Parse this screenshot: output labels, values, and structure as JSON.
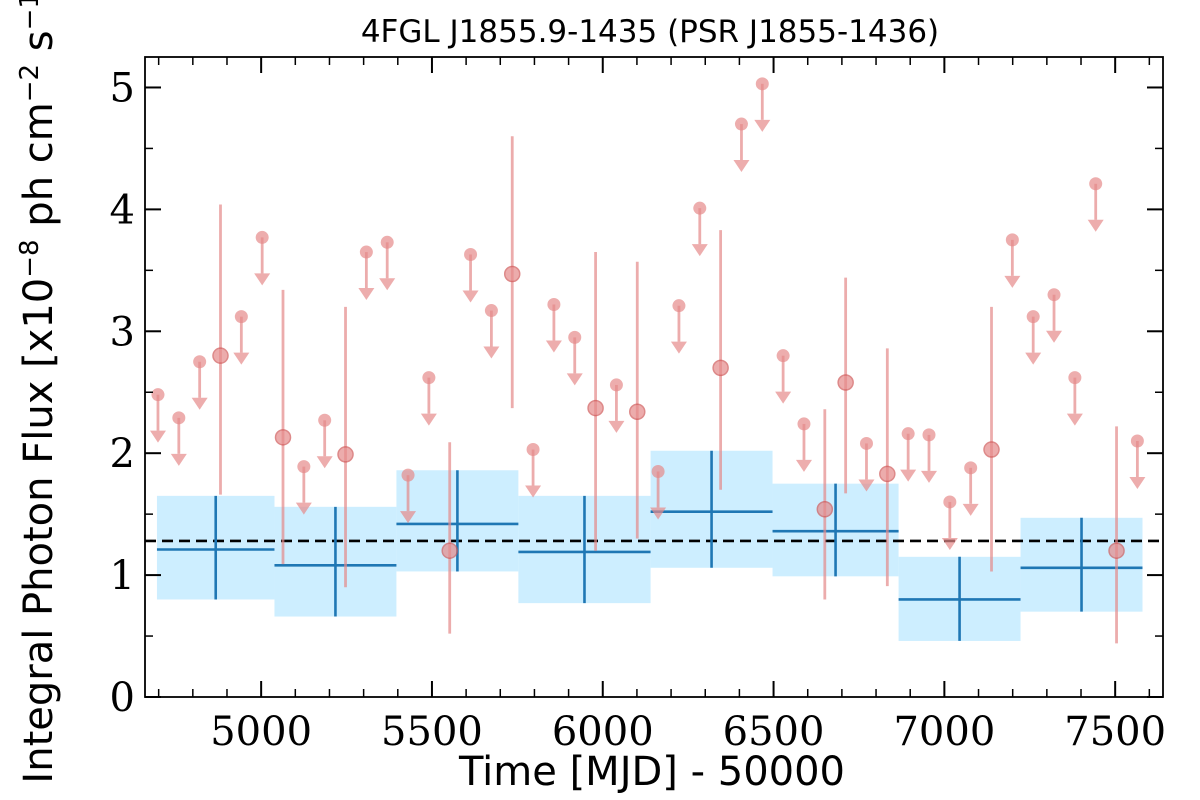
{
  "chart_data": {
    "type": "scatter",
    "title": "4FGL J1855.9-1435 (PSR J1855-1436)",
    "xlabel": "Time [MJD] - 50000",
    "ylabel": "Integral Photon Flux [x10^-8 ph cm^-2 s^-1]",
    "xlim": [
      4660,
      7640
    ],
    "ylim": [
      0,
      5.25
    ],
    "x_ticks": [
      5000,
      5500,
      6000,
      6500,
      7000,
      7500
    ],
    "y_ticks": [
      0,
      1,
      2,
      3,
      4,
      5
    ],
    "grid": false,
    "reference_line": {
      "y": 1.28,
      "style": "dashed",
      "color": "#000000"
    },
    "colors": {
      "short_bins": "#e58a8a",
      "long_bins": "#1f77b4",
      "long_bins_band": "#cdeeff"
    },
    "series": [
      {
        "role": "upper_limits",
        "points": [
          {
            "x": 4698,
            "y": 2.48
          },
          {
            "x": 4759,
            "y": 2.29
          },
          {
            "x": 4820,
            "y": 2.75
          },
          {
            "x": 4942,
            "y": 3.12
          },
          {
            "x": 5003,
            "y": 3.77
          },
          {
            "x": 5125,
            "y": 1.89
          },
          {
            "x": 5186,
            "y": 2.27
          },
          {
            "x": 5308,
            "y": 3.65
          },
          {
            "x": 5369,
            "y": 3.73
          },
          {
            "x": 5430,
            "y": 1.82
          },
          {
            "x": 5491,
            "y": 2.62
          },
          {
            "x": 5613,
            "y": 3.63
          },
          {
            "x": 5674,
            "y": 3.17
          },
          {
            "x": 5796,
            "y": 2.03
          },
          {
            "x": 5857,
            "y": 3.22
          },
          {
            "x": 5918,
            "y": 2.95
          },
          {
            "x": 6040,
            "y": 2.56
          },
          {
            "x": 6162,
            "y": 1.85
          },
          {
            "x": 6223,
            "y": 3.21
          },
          {
            "x": 6284,
            "y": 4.01
          },
          {
            "x": 6406,
            "y": 4.7
          },
          {
            "x": 6467,
            "y": 5.03
          },
          {
            "x": 6528,
            "y": 2.8
          },
          {
            "x": 6589,
            "y": 2.24
          },
          {
            "x": 6772,
            "y": 2.08
          },
          {
            "x": 6894,
            "y": 2.16
          },
          {
            "x": 6955,
            "y": 2.15
          },
          {
            "x": 7016,
            "y": 1.6
          },
          {
            "x": 7077,
            "y": 1.88
          },
          {
            "x": 7199,
            "y": 3.75
          },
          {
            "x": 7260,
            "y": 3.12
          },
          {
            "x": 7321,
            "y": 3.3
          },
          {
            "x": 7382,
            "y": 2.62
          },
          {
            "x": 7443,
            "y": 4.21
          },
          {
            "x": 7565,
            "y": 2.1
          }
        ]
      },
      {
        "role": "detections",
        "points": [
          {
            "x": 4881,
            "y": 2.8,
            "ylo": 1.66,
            "yhi": 4.04
          },
          {
            "x": 5064,
            "y": 2.13,
            "ylo": 1.09,
            "yhi": 3.34
          },
          {
            "x": 5247,
            "y": 1.99,
            "ylo": 0.9,
            "yhi": 3.2
          },
          {
            "x": 5552,
            "y": 1.2,
            "ylo": 0.52,
            "yhi": 2.09
          },
          {
            "x": 5735,
            "y": 3.47,
            "ylo": 2.37,
            "yhi": 4.6
          },
          {
            "x": 5979,
            "y": 2.37,
            "ylo": 1.2,
            "yhi": 3.65
          },
          {
            "x": 6101,
            "y": 2.34,
            "ylo": 1.3,
            "yhi": 3.57
          },
          {
            "x": 6345,
            "y": 2.7,
            "ylo": 1.7,
            "yhi": 3.83
          },
          {
            "x": 6650,
            "y": 1.54,
            "ylo": 0.8,
            "yhi": 2.36
          },
          {
            "x": 6711,
            "y": 2.58,
            "ylo": 1.67,
            "yhi": 3.44
          },
          {
            "x": 6833,
            "y": 1.83,
            "ylo": 0.91,
            "yhi": 2.86
          },
          {
            "x": 7138,
            "y": 2.03,
            "ylo": 1.03,
            "yhi": 3.2
          },
          {
            "x": 7504,
            "y": 1.2,
            "ylo": 0.44,
            "yhi": 2.22
          }
        ]
      },
      {
        "role": "long_bins",
        "points": [
          {
            "x0": 4695,
            "x1": 5039,
            "y": 1.21,
            "ylo": 0.8,
            "yhi": 1.65
          },
          {
            "x0": 5039,
            "x1": 5396,
            "y": 1.08,
            "ylo": 0.66,
            "yhi": 1.56
          },
          {
            "x0": 5396,
            "x1": 5753,
            "y": 1.42,
            "ylo": 1.03,
            "yhi": 1.86
          },
          {
            "x0": 5753,
            "x1": 6140,
            "y": 1.19,
            "ylo": 0.77,
            "yhi": 1.65
          },
          {
            "x0": 6140,
            "x1": 6497,
            "y": 1.52,
            "ylo": 1.06,
            "yhi": 2.02
          },
          {
            "x0": 6497,
            "x1": 6866,
            "y": 1.36,
            "ylo": 0.99,
            "yhi": 1.75
          },
          {
            "x0": 6866,
            "x1": 7223,
            "y": 0.8,
            "ylo": 0.46,
            "yhi": 1.15
          },
          {
            "x0": 7223,
            "x1": 7580,
            "y": 1.06,
            "ylo": 0.7,
            "yhi": 1.47
          }
        ]
      }
    ]
  }
}
